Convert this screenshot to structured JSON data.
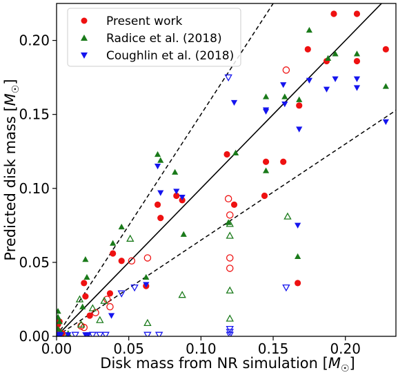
{
  "chart_data": {
    "type": "scatter",
    "xlabel": "Disk mass from NR simulation [M☉]",
    "ylabel": "Predicted disk mass [M☉]",
    "xlabel_text": "Disk mass from NR simulation [",
    "ylabel_text": "Predicted disk mass [",
    "label_unit_symbol": "M",
    "label_unit_sub": "☉",
    "label_close": "]",
    "xlim": [
      0.0,
      0.235
    ],
    "ylim": [
      0.0,
      0.225
    ],
    "xticks": [
      "0.00",
      "0.05",
      "0.10",
      "0.15",
      "0.20"
    ],
    "yticks": [
      "0.00",
      "0.05",
      "0.10",
      "0.15",
      "0.20"
    ],
    "xtick_values": [
      0.0,
      0.05,
      0.1,
      0.15,
      0.2
    ],
    "ytick_values": [
      0.0,
      0.05,
      0.1,
      0.15,
      0.2
    ],
    "grid": false,
    "legend_position": "top-left",
    "reference_lines": [
      {
        "slope": 1.0,
        "style": "solid",
        "color": "#000000"
      },
      {
        "slope": 1.5,
        "style": "dashed",
        "color": "#000000"
      },
      {
        "slope": 0.65,
        "style": "dashed",
        "color": "#000000"
      }
    ],
    "series": [
      {
        "name": "Present work",
        "color": "#ee1111",
        "marker": "circle",
        "filled": [
          [
            0.001,
            0.008
          ],
          [
            0.001,
            0.004
          ],
          [
            0.002,
            0.01
          ],
          [
            0.004,
            0.002
          ],
          [
            0.019,
            0.036
          ],
          [
            0.02,
            0.027
          ],
          [
            0.023,
            0.014
          ],
          [
            0.037,
            0.029
          ],
          [
            0.039,
            0.056
          ],
          [
            0.045,
            0.051
          ],
          [
            0.062,
            0.034
          ],
          [
            0.07,
            0.089
          ],
          [
            0.072,
            0.08
          ],
          [
            0.083,
            0.095
          ],
          [
            0.087,
            0.092
          ],
          [
            0.118,
            0.123
          ],
          [
            0.123,
            0.089
          ],
          [
            0.144,
            0.095
          ],
          [
            0.145,
            0.118
          ],
          [
            0.157,
            0.118
          ],
          [
            0.167,
            0.036
          ],
          [
            0.168,
            0.156
          ],
          [
            0.174,
            0.194
          ],
          [
            0.187,
            0.186
          ],
          [
            0.192,
            0.218
          ],
          [
            0.208,
            0.186
          ],
          [
            0.208,
            0.218
          ],
          [
            0.228,
            0.194
          ]
        ],
        "hollow": [
          [
            0.017,
            0.007
          ],
          [
            0.019,
            0.006
          ],
          [
            0.027,
            0.016
          ],
          [
            0.035,
            0.025
          ],
          [
            0.037,
            0.02
          ],
          [
            0.052,
            0.051
          ],
          [
            0.063,
            0.053
          ],
          [
            0.119,
            0.093
          ],
          [
            0.12,
            0.082
          ],
          [
            0.12,
            0.053
          ],
          [
            0.12,
            0.046
          ],
          [
            0.159,
            0.18
          ]
        ]
      },
      {
        "name": "Radice et al. (2018)",
        "color": "#1a7a1a",
        "marker": "triangle-up",
        "filled": [
          [
            0.001,
            0.017
          ],
          [
            0.001,
            0.013
          ],
          [
            0.002,
            0.01
          ],
          [
            0.001,
            0.005
          ],
          [
            0.003,
            0.003
          ],
          [
            0.008,
            0.002
          ],
          [
            0.018,
            0.02
          ],
          [
            0.02,
            0.052
          ],
          [
            0.021,
            0.04
          ],
          [
            0.039,
            0.063
          ],
          [
            0.045,
            0.074
          ],
          [
            0.062,
            0.04
          ],
          [
            0.07,
            0.123
          ],
          [
            0.072,
            0.119
          ],
          [
            0.082,
            0.111
          ],
          [
            0.088,
            0.069
          ],
          [
            0.119,
            0.077
          ],
          [
            0.124,
            0.124
          ],
          [
            0.145,
            0.112
          ],
          [
            0.145,
            0.162
          ],
          [
            0.158,
            0.162
          ],
          [
            0.167,
            0.054
          ],
          [
            0.168,
            0.16
          ],
          [
            0.175,
            0.207
          ],
          [
            0.188,
            0.188
          ],
          [
            0.193,
            0.191
          ],
          [
            0.208,
            0.191
          ],
          [
            0.228,
            0.169
          ]
        ],
        "hollow": [
          [
            0.016,
            0.025
          ],
          [
            0.017,
            0.008
          ],
          [
            0.025,
            0.019
          ],
          [
            0.03,
            0.011
          ],
          [
            0.033,
            0.024
          ],
          [
            0.051,
            0.066
          ],
          [
            0.063,
            0.009
          ],
          [
            0.087,
            0.028
          ],
          [
            0.12,
            0.076
          ],
          [
            0.12,
            0.068
          ],
          [
            0.12,
            0.031
          ],
          [
            0.12,
            0.012
          ],
          [
            0.16,
            0.081
          ]
        ]
      },
      {
        "name": "Coughlin et al. (2018)",
        "color": "#1515ee",
        "marker": "triangle-down",
        "filled": [
          [
            0.001,
            0.001
          ],
          [
            0.003,
            0.001
          ],
          [
            0.008,
            0.001
          ],
          [
            0.02,
            0.001
          ],
          [
            0.022,
            0.001
          ],
          [
            0.038,
            0.014
          ],
          [
            0.062,
            0.035
          ],
          [
            0.07,
            0.115
          ],
          [
            0.072,
            0.097
          ],
          [
            0.083,
            0.098
          ],
          [
            0.087,
            0.094
          ],
          [
            0.123,
            0.158
          ],
          [
            0.145,
            0.152
          ],
          [
            0.145,
            0.153
          ],
          [
            0.157,
            0.17
          ],
          [
            0.158,
            0.157
          ],
          [
            0.167,
            0.075
          ],
          [
            0.168,
            0.14
          ],
          [
            0.175,
            0.173
          ],
          [
            0.187,
            0.167
          ],
          [
            0.193,
            0.174
          ],
          [
            0.208,
            0.174
          ],
          [
            0.208,
            0.168
          ],
          [
            0.228,
            0.145
          ]
        ],
        "hollow": [
          [
            0.001,
            0.001
          ],
          [
            0.013,
            0.001
          ],
          [
            0.025,
            0.001
          ],
          [
            0.03,
            0.001
          ],
          [
            0.034,
            0.001
          ],
          [
            0.045,
            0.029
          ],
          [
            0.054,
            0.033
          ],
          [
            0.063,
            0.001
          ],
          [
            0.071,
            0.001
          ],
          [
            0.119,
            0.175
          ],
          [
            0.12,
            0.005
          ],
          [
            0.12,
            0.003
          ],
          [
            0.12,
            0.001
          ],
          [
            0.159,
            0.033
          ]
        ]
      }
    ]
  }
}
